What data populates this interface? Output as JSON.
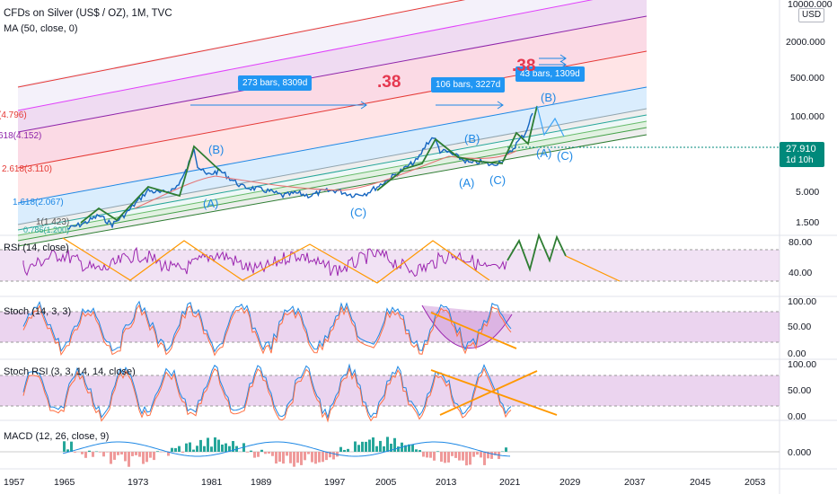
{
  "header": {
    "symbol_line": "CFDs on Silver (US$ / OZ), 1M, TVC",
    "ma_line": "MA (50, close, 0)"
  },
  "price_axis": {
    "top_label": "10000.000",
    "currency": "USD",
    "ticks": [
      "2000.000",
      "500.000",
      "100.000",
      "5.000",
      "1.500"
    ],
    "last_price": "27.910",
    "countdown": "1d 10h"
  },
  "fib_labels": [
    "(4.796)",
    "618(4.152)",
    "2.618(3.110)",
    "1.618(2.067)",
    "1(1.423)",
    "0.786(1.200)"
  ],
  "annotations": {
    "bars_box_1": "273 bars, 8309d",
    "bars_box_2": "106 bars, 3227d",
    "bars_box_3": "43 bars, 1309d",
    "fib_ratio_1": ".38",
    "fib_ratio_2": ".38",
    "waves": [
      "(B)",
      "(A)",
      "(C)",
      "(B)",
      "(A)",
      "(C)",
      "(B)",
      "(A)",
      "(C)"
    ]
  },
  "panes": {
    "rsi": {
      "title": "RSI (14, close)",
      "ticks": [
        "80.00",
        "40.00"
      ]
    },
    "stoch": {
      "title": "Stoch (14, 3, 3)",
      "ticks": [
        "100.00",
        "50.00",
        "0.00"
      ]
    },
    "stoch_rsi": {
      "title": "Stoch RSI (3, 3, 14, 14, close)",
      "ticks": [
        "100.00",
        "50.00",
        "0.00"
      ]
    },
    "macd": {
      "title": "MACD (12, 26, close, 9)",
      "ticks": [
        "0.000"
      ]
    }
  },
  "time_axis": [
    "1957",
    "1965",
    "1973",
    "1981",
    "1989",
    "1997",
    "2005",
    "2013",
    "2021",
    "2029",
    "2037",
    "2045",
    "2053"
  ],
  "colors": {
    "accent_blue": "#2962ff",
    "box_blue": "#2196f3",
    "rsi_purple": "#9c27b0",
    "trend_orange": "#ff9800",
    "wave_green": "#2e7d32",
    "fib_red": "#e53935",
    "last_price_bg": "#00897b"
  }
}
